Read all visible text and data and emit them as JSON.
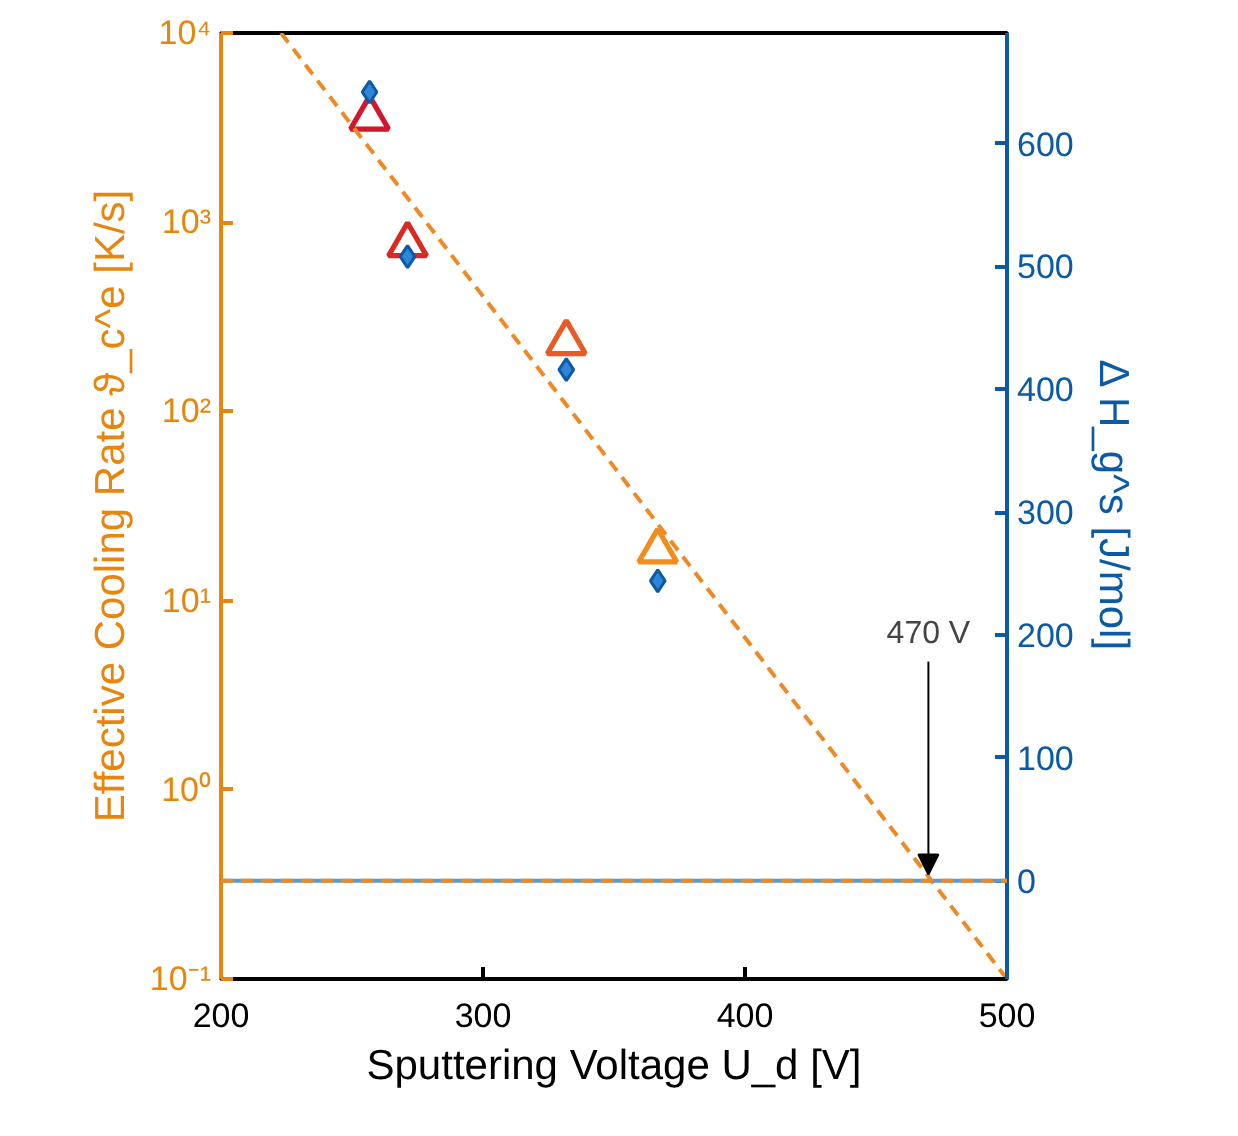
{
  "chart_data": {
    "type": "scatter",
    "xlabel": "Sputtering Voltage U_d [V]",
    "ylabel": "Effective Cooling Rate ϑ_c^e [K/s]",
    "y2label": "Δ H_g^s [J/mol]",
    "log": "y",
    "xlim": [
      200,
      500
    ],
    "xticks": [
      200,
      300,
      400,
      500
    ],
    "ylim": [
      0.1,
      10000
    ],
    "yticks": [
      {
        "value": 0.1,
        "label": "10⁻¹"
      },
      {
        "value": 1,
        "label": "10⁰"
      },
      {
        "value": 10,
        "label": "10¹"
      },
      {
        "value": 100,
        "label": "10²"
      },
      {
        "value": 1000,
        "label": "10³"
      },
      {
        "value": 10000,
        "label": "10⁴"
      }
    ],
    "y2lim": [
      -80,
      690
    ],
    "y2ticks": [
      0,
      100,
      200,
      300,
      400,
      500,
      600
    ],
    "grid": false,
    "series": [
      {
        "marker": "triangle",
        "x": [
          256.7,
          271.2,
          331.8,
          366.7
        ],
        "values": [
          3550,
          760,
          231,
          18.3
        ],
        "colors": [
          "#d1172b",
          "#d82a22",
          "#ea5a24",
          "#f28c1e"
        ]
      },
      {
        "marker": "diamond",
        "axis": "y2",
        "color": "#2f86d6",
        "x": [
          256.7,
          271.2,
          331.8,
          366.7
        ],
        "values": [
          642,
          508,
          416,
          244
        ]
      },
      {
        "type": "line",
        "line_style": "dashed",
        "color": "#ee8a25",
        "x": [
          222.9,
          500
        ],
        "values": [
          10000,
          0.1
        ]
      }
    ],
    "ref_lines": [
      {
        "axis": "y2",
        "value": 0,
        "color": "#5b9bd5",
        "line_style": "solid"
      },
      {
        "axis": "y2",
        "value": 0,
        "color": "#ee8a25",
        "line_style": "dashed"
      }
    ],
    "annotations": [
      {
        "text": "470 V",
        "x": 470,
        "y": 0.34
      }
    ]
  }
}
